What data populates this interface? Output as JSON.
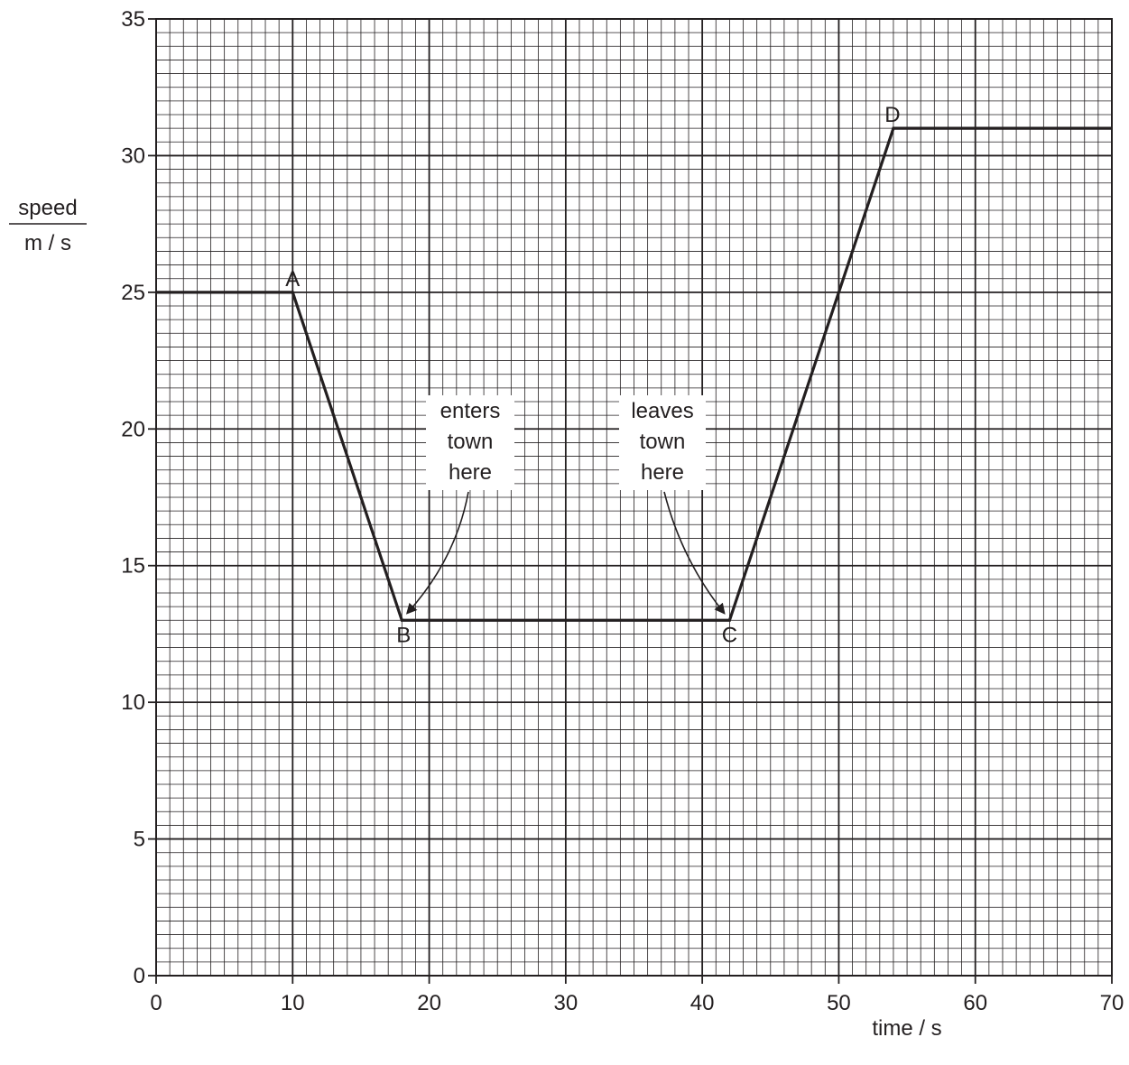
{
  "chart_data": {
    "type": "line",
    "xlabel": "time / s",
    "ylabel_top": "speed",
    "ylabel_bottom": "m / s",
    "xlim": [
      0,
      70
    ],
    "ylim": [
      0,
      35
    ],
    "x_ticks": [
      0,
      10,
      20,
      30,
      40,
      50,
      60,
      70
    ],
    "y_ticks": [
      0,
      5,
      10,
      15,
      20,
      25,
      30,
      35
    ],
    "grid": "on (major every 10 s / 5 m/s, minor every 1 s / 0.5 m/s)",
    "series": [
      {
        "x": [
          0,
          10,
          18,
          42,
          54,
          70
        ],
        "y": [
          25,
          25,
          13,
          13,
          31,
          31
        ]
      }
    ],
    "points": [
      {
        "label": "A",
        "x": 10,
        "y": 25
      },
      {
        "label": "B",
        "x": 18,
        "y": 13
      },
      {
        "label": "C",
        "x": 42,
        "y": 13
      },
      {
        "label": "D",
        "x": 54,
        "y": 31
      }
    ],
    "annotations": [
      {
        "lines": [
          "enters",
          "town",
          "here"
        ],
        "points_to": "B"
      },
      {
        "lines": [
          "leaves",
          "town",
          "here"
        ],
        "points_to": "C"
      }
    ]
  }
}
